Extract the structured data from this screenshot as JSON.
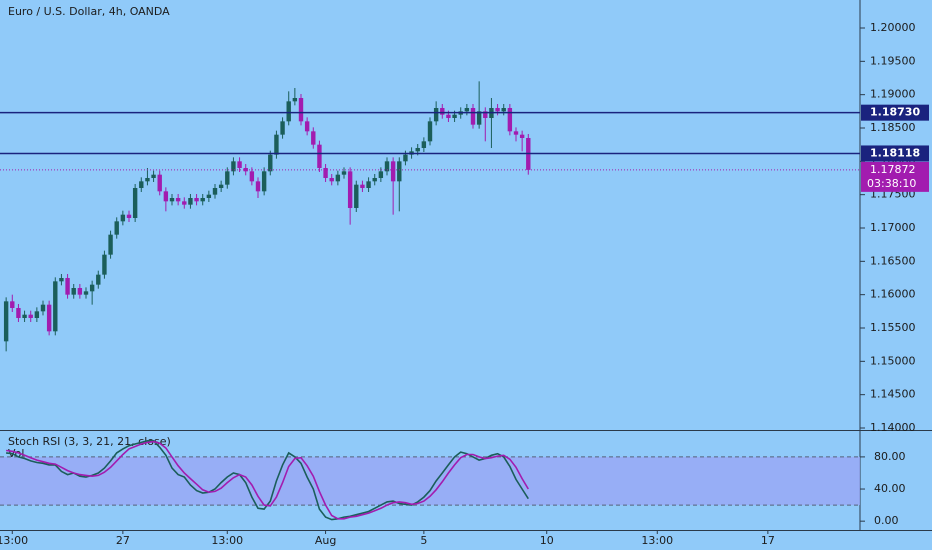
{
  "chart_data": [
    {
      "type": "candlestick",
      "title": "Euro / U.S. Dollar, 4h, OANDA",
      "up_color": "#1b5e5a",
      "down_color": "#a21caf",
      "open": [
        1.153,
        1.159,
        1.158,
        1.1565,
        1.157,
        1.1565,
        1.1575,
        1.1585,
        1.1545,
        1.162,
        1.1625,
        1.16,
        1.161,
        1.16,
        1.1605,
        1.1615,
        1.163,
        1.166,
        1.169,
        1.171,
        1.172,
        1.1715,
        1.176,
        1.177,
        1.1775,
        1.178,
        1.1755,
        1.174,
        1.1745,
        1.174,
        1.1735,
        1.1745,
        1.174,
        1.1745,
        1.175,
        1.176,
        1.1765,
        1.1785,
        1.18,
        1.179,
        1.1785,
        1.177,
        1.1755,
        1.1785,
        1.181,
        1.184,
        1.186,
        1.189,
        1.1895,
        1.186,
        1.1845,
        1.1825,
        1.179,
        1.1775,
        1.177,
        1.178,
        1.1785,
        1.173,
        1.1765,
        1.176,
        1.177,
        1.1775,
        1.1785,
        1.18,
        1.177,
        1.18,
        1.181,
        1.1815,
        1.182,
        1.183,
        1.186,
        1.188,
        1.187,
        1.1865,
        1.187,
        1.1875,
        1.188,
        1.1855,
        1.1875,
        1.1865,
        1.188,
        1.1875,
        1.188,
        1.1845,
        1.184,
        1.1835
      ],
      "high": [
        1.1596,
        1.16,
        1.1586,
        1.1576,
        1.1576,
        1.1581,
        1.1591,
        1.1591,
        1.1626,
        1.1631,
        1.1631,
        1.1616,
        1.1616,
        1.1611,
        1.1621,
        1.1636,
        1.1666,
        1.1696,
        1.1716,
        1.1726,
        1.1726,
        1.1766,
        1.1776,
        1.179,
        1.1786,
        1.1786,
        1.1761,
        1.1751,
        1.1751,
        1.1746,
        1.1751,
        1.1751,
        1.1751,
        1.1756,
        1.1766,
        1.1771,
        1.1791,
        1.1806,
        1.1806,
        1.1796,
        1.1791,
        1.1776,
        1.1791,
        1.1816,
        1.1846,
        1.1866,
        1.1905,
        1.191,
        1.1901,
        1.1866,
        1.1851,
        1.1831,
        1.1796,
        1.1781,
        1.1786,
        1.1791,
        1.1791,
        1.1771,
        1.1771,
        1.1776,
        1.1781,
        1.1791,
        1.1806,
        1.1806,
        1.1806,
        1.1816,
        1.1821,
        1.1826,
        1.1836,
        1.1866,
        1.189,
        1.1886,
        1.1876,
        1.1876,
        1.1881,
        1.1886,
        1.1886,
        1.192,
        1.1881,
        1.1895,
        1.1886,
        1.1886,
        1.1886,
        1.1851,
        1.1846,
        1.1841
      ],
      "low": [
        1.1515,
        1.1574,
        1.1559,
        1.1559,
        1.1559,
        1.1559,
        1.1569,
        1.1539,
        1.1539,
        1.1614,
        1.1594,
        1.1594,
        1.1594,
        1.1594,
        1.1585,
        1.1609,
        1.1624,
        1.1654,
        1.1684,
        1.1704,
        1.1709,
        1.1709,
        1.1754,
        1.1764,
        1.1769,
        1.1749,
        1.1725,
        1.1734,
        1.1734,
        1.1729,
        1.1729,
        1.1734,
        1.1734,
        1.1739,
        1.1744,
        1.1754,
        1.1759,
        1.1779,
        1.1784,
        1.1779,
        1.1764,
        1.1745,
        1.1749,
        1.1779,
        1.1804,
        1.1834,
        1.1854,
        1.1884,
        1.1854,
        1.1839,
        1.1819,
        1.1784,
        1.1769,
        1.1764,
        1.1764,
        1.1774,
        1.1705,
        1.1724,
        1.1754,
        1.1754,
        1.1764,
        1.1769,
        1.1779,
        1.172,
        1.1725,
        1.1794,
        1.1804,
        1.1809,
        1.1814,
        1.1824,
        1.1854,
        1.1864,
        1.1859,
        1.1859,
        1.1864,
        1.1869,
        1.1849,
        1.1849,
        1.183,
        1.182,
        1.1869,
        1.1869,
        1.1839,
        1.183,
        1.1815,
        1.178
      ],
      "close": [
        1.159,
        1.158,
        1.1565,
        1.157,
        1.1565,
        1.1575,
        1.1585,
        1.1545,
        1.162,
        1.1625,
        1.16,
        1.161,
        1.16,
        1.1605,
        1.1615,
        1.163,
        1.166,
        1.169,
        1.171,
        1.172,
        1.1715,
        1.176,
        1.177,
        1.1775,
        1.178,
        1.1755,
        1.174,
        1.1745,
        1.174,
        1.1735,
        1.1745,
        1.174,
        1.1745,
        1.175,
        1.176,
        1.1765,
        1.1785,
        1.18,
        1.179,
        1.1785,
        1.177,
        1.1755,
        1.1785,
        1.181,
        1.184,
        1.186,
        1.189,
        1.1895,
        1.186,
        1.1845,
        1.1825,
        1.179,
        1.1775,
        1.177,
        1.178,
        1.1785,
        1.173,
        1.1765,
        1.176,
        1.177,
        1.1775,
        1.1785,
        1.18,
        1.177,
        1.18,
        1.181,
        1.1815,
        1.182,
        1.183,
        1.186,
        1.188,
        1.187,
        1.1865,
        1.187,
        1.1875,
        1.188,
        1.1855,
        1.1875,
        1.1865,
        1.188,
        1.1875,
        1.188,
        1.1845,
        1.184,
        1.1835,
        1.17872
      ],
      "xlim": [
        -1,
        139
      ],
      "xticks": [
        {
          "value": 1,
          "label": "13:00"
        },
        {
          "value": 19,
          "label": "27"
        },
        {
          "value": 36,
          "label": "13:00"
        },
        {
          "value": 52,
          "label": "Aug"
        },
        {
          "value": 68,
          "label": "5"
        },
        {
          "value": 88,
          "label": "10"
        },
        {
          "value": 106,
          "label": "13:00"
        },
        {
          "value": 124,
          "label": "17"
        }
      ],
      "ylim": [
        1.1397,
        1.2042
      ],
      "yticks": [
        {
          "value": 1.2,
          "label": "1.20000"
        },
        {
          "value": 1.195,
          "label": "1.19500"
        },
        {
          "value": 1.19,
          "label": "1.19000"
        },
        {
          "value": 1.185,
          "label": "1.18500"
        },
        {
          "value": 1.18,
          "label": "1.18000"
        },
        {
          "value": 1.175,
          "label": "1.17500"
        },
        {
          "value": 1.17,
          "label": "1.17000"
        },
        {
          "value": 1.165,
          "label": "1.16500"
        },
        {
          "value": 1.16,
          "label": "1.16000"
        },
        {
          "value": 1.155,
          "label": "1.15500"
        },
        {
          "value": 1.15,
          "label": "1.15000"
        },
        {
          "value": 1.145,
          "label": "1.14500"
        },
        {
          "value": 1.14,
          "label": "1.14000"
        }
      ],
      "hlines": [
        {
          "value": 1.1873,
          "label": "1.18730",
          "color": "#1a237e"
        },
        {
          "value": 1.18118,
          "label": "1.18118",
          "color": "#1a237e"
        }
      ],
      "last_price": {
        "value": 1.17872,
        "label": "1.17872",
        "color": "#a21caf",
        "countdown": "03:38:10"
      }
    },
    {
      "type": "line",
      "title": "Stoch RSI (3, 3, 21, 21, close)",
      "subtitle": "Vol",
      "ylim": [
        -11,
        111
      ],
      "yticks": [
        {
          "value": 80,
          "label": "80.00"
        },
        {
          "value": 40,
          "label": "40.00"
        },
        {
          "value": 0,
          "label": "0.00"
        }
      ],
      "band": [
        20,
        80
      ],
      "band_color": "#98a6f5",
      "series": [
        {
          "color": "#1b5e5a",
          "values": [
            85,
            84,
            80,
            78,
            75,
            73,
            72,
            70,
            70,
            62,
            58,
            60,
            56,
            55,
            57,
            60,
            66,
            75,
            85,
            90,
            94,
            96,
            98,
            100,
            100,
            92,
            82,
            66,
            58,
            55,
            45,
            38,
            35,
            36,
            40,
            48,
            55,
            60,
            58,
            48,
            30,
            16,
            15,
            25,
            50,
            70,
            85,
            80,
            72,
            55,
            40,
            15,
            5,
            2,
            3,
            5,
            6,
            8,
            10,
            12,
            16,
            20,
            24,
            25,
            22,
            21,
            20,
            24,
            30,
            38,
            50,
            60,
            70,
            80,
            86,
            84,
            80,
            76,
            78,
            82,
            84,
            80,
            68,
            52,
            40,
            28
          ]
        },
        {
          "color": "#a21caf",
          "values": [
            88,
            87,
            85,
            82,
            79,
            76,
            74,
            72,
            71,
            67,
            63,
            60,
            58,
            57,
            56,
            57,
            61,
            67,
            75,
            83,
            90,
            93,
            96,
            98,
            99,
            97,
            91,
            80,
            69,
            60,
            53,
            46,
            39,
            36,
            37,
            41,
            48,
            54,
            58,
            55,
            45,
            31,
            20,
            19,
            30,
            48,
            68,
            78,
            79,
            69,
            56,
            37,
            20,
            7,
            3,
            3,
            5,
            6,
            8,
            10,
            13,
            16,
            20,
            23,
            24,
            23,
            21,
            22,
            25,
            31,
            39,
            49,
            60,
            70,
            79,
            83,
            83,
            80,
            78,
            79,
            81,
            82,
            77,
            67,
            53,
            40
          ]
        }
      ]
    }
  ]
}
